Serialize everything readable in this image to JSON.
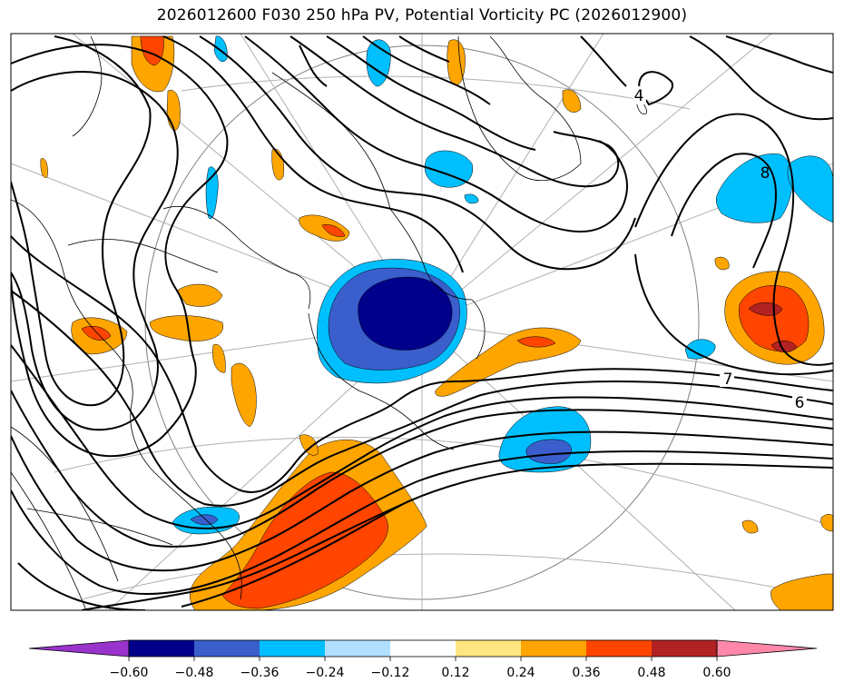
{
  "title": "2026012600 F030 250 hPa PV, Potential Vorticity PC (2026012900)",
  "colorbar": {
    "ticks": [
      "−0.60",
      "−0.48",
      "−0.36",
      "−0.24",
      "−0.12",
      "0.12",
      "0.24",
      "0.36",
      "0.48",
      "0.60"
    ],
    "colors": [
      "#9933cc",
      "#00008b",
      "#3a5fcd",
      "#00bfff",
      "#b0e0ff",
      "#ffffff",
      "#ffe680",
      "#ffa500",
      "#ff4500",
      "#b22222",
      "#ff88aa"
    ]
  },
  "contour_labels": [
    "4",
    "8",
    "7",
    "6"
  ],
  "chart_data": {
    "type": "contour-map",
    "title": "2026012600 F030 250 hPa PV, Potential Vorticity PC (2026012900)",
    "fill_levels": [
      -0.6,
      -0.48,
      -0.36,
      -0.24,
      -0.12,
      0.12,
      0.24,
      0.36,
      0.48,
      0.6
    ],
    "contour_line_labels": [
      4,
      8,
      7,
      6
    ],
    "colorbar_extend": "both"
  }
}
